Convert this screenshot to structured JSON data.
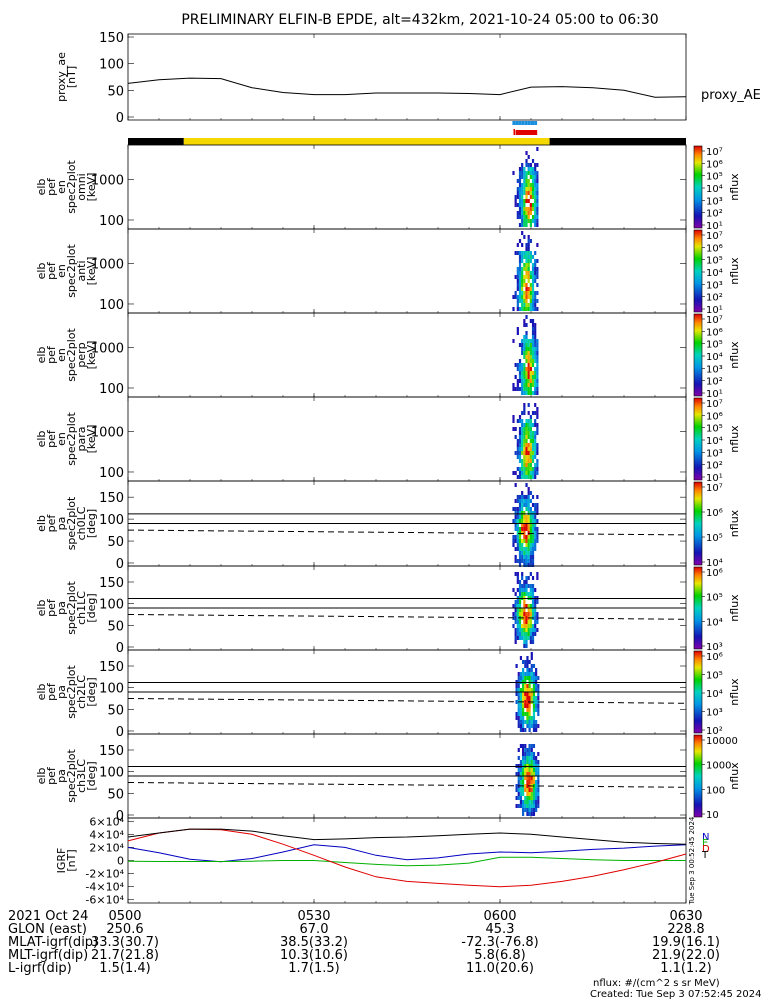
{
  "title": "PRELIMINARY ELFIN-B EPDE, alt=432km, 2021-10-24 05:00 to 06:30",
  "time_range": [
    "2021-10-24 05:00",
    "2021-10-24 06:30"
  ],
  "chart_data": [
    {
      "panel": "proxy_ae",
      "type": "line",
      "ylabel": "proxy_ae [nT]",
      "legend": "proxy_AE",
      "ylim": [
        0,
        150
      ],
      "yticks": [
        "0",
        "50",
        "100",
        "150"
      ],
      "x_min": [
        0,
        5,
        10,
        15,
        20,
        25,
        30,
        35,
        40,
        45,
        50,
        55,
        60,
        65,
        70,
        75,
        80,
        85,
        90
      ],
      "values": [
        63,
        70,
        73,
        72,
        55,
        46,
        42,
        42,
        45,
        45,
        45,
        44,
        42,
        56,
        57,
        55,
        50,
        37,
        38
      ]
    },
    {
      "panel": "status_bar",
      "type": "segments",
      "segments": [
        {
          "start_min": 0,
          "end_min": 9,
          "color": "#000000"
        },
        {
          "start_min": 9,
          "end_min": 68,
          "color": "#f5d800"
        },
        {
          "start_min": 68,
          "end_min": 90,
          "color": "#000000"
        }
      ],
      "science_marks": [
        {
          "start_min": 62,
          "end_min": 66,
          "color": "#1a8fe0"
        },
        {
          "start_min": 62.5,
          "end_min": 66,
          "color": "#e00000"
        }
      ]
    },
    {
      "panel": "elb_pef_en_spec2plot_omni",
      "type": "heatmap",
      "ylabel": "elb pef en spec2plot omni [keV]",
      "scale": "log",
      "ylim": [
        60,
        7000
      ],
      "yticks": [
        "100",
        "1000"
      ],
      "colorbar": {
        "label": "nflux",
        "ticks": [
          "10¹",
          "10²",
          "10³",
          "10⁴",
          "10⁵",
          "10⁶",
          "10⁷"
        ]
      },
      "activity_window_min": [
        62,
        66
      ],
      "peak_min": 64.5
    },
    {
      "panel": "elb_pef_en_spec2plot_anti",
      "type": "heatmap",
      "ylabel": "elb pef en spec2plot anti [keV]",
      "scale": "log",
      "ylim": [
        60,
        7000
      ],
      "yticks": [
        "100",
        "1000"
      ],
      "colorbar": {
        "label": "nflux",
        "ticks": [
          "10¹",
          "10²",
          "10³",
          "10⁴",
          "10⁵",
          "10⁶",
          "10⁷"
        ]
      },
      "activity_window_min": [
        62,
        66
      ],
      "peak_min": 64.2
    },
    {
      "panel": "elb_pef_en_spec2plot_perp",
      "type": "heatmap",
      "ylabel": "elb pef en spec2plot perp [keV]",
      "scale": "log",
      "ylim": [
        60,
        7000
      ],
      "yticks": [
        "100",
        "1000"
      ],
      "colorbar": {
        "label": "nflux",
        "ticks": [
          "10¹",
          "10²",
          "10³",
          "10⁴",
          "10⁵",
          "10⁶",
          "10⁷"
        ]
      },
      "activity_window_min": [
        62,
        66
      ],
      "peak_min": 64.5
    },
    {
      "panel": "elb_pef_en_spec2plot_para",
      "type": "heatmap",
      "ylabel": "elb pef en spec2plot para [keV]",
      "scale": "log",
      "ylim": [
        60,
        7000
      ],
      "yticks": [
        "100",
        "1000"
      ],
      "colorbar": {
        "label": "nflux",
        "ticks": [
          "10¹",
          "10²",
          "10³",
          "10⁴",
          "10⁵",
          "10⁶",
          "10⁷"
        ]
      },
      "activity_window_min": [
        62,
        66
      ],
      "peak_min": 64.3
    },
    {
      "panel": "elb_pef_pa_spec2plot_ch0LC",
      "type": "heatmap",
      "ylabel": "elb pef pa spec2plot ch0LC [deg]",
      "ylim": [
        0,
        180
      ],
      "yticks": [
        "0",
        "50",
        "100",
        "150"
      ],
      "lc_lines_deg": [
        90,
        112
      ],
      "dashed_deg": [
        75,
        64
      ],
      "colorbar": {
        "label": "nflux",
        "ticks": [
          "10⁴",
          "10⁵",
          "10⁶",
          "10⁷"
        ]
      },
      "activity_window_min": [
        62,
        66
      ],
      "peak_min": 64.0
    },
    {
      "panel": "elb_pef_pa_spec2plot_ch1LC",
      "type": "heatmap",
      "ylabel": "elb pef pa spec2plot ch1LC [deg]",
      "ylim": [
        0,
        180
      ],
      "yticks": [
        "0",
        "50",
        "100",
        "150"
      ],
      "lc_lines_deg": [
        90,
        112
      ],
      "dashed_deg": [
        75,
        64
      ],
      "colorbar": {
        "label": "nflux",
        "ticks": [
          "10³",
          "10⁴",
          "10⁵",
          "10⁶"
        ]
      },
      "activity_window_min": [
        62,
        66
      ],
      "peak_min": 64.0
    },
    {
      "panel": "elb_pef_pa_spec2plot_ch2LC",
      "type": "heatmap",
      "ylabel": "elb pef pa spec2plot ch2LC [deg]",
      "ylim": [
        0,
        180
      ],
      "yticks": [
        "0",
        "50",
        "100",
        "150"
      ],
      "lc_lines_deg": [
        90,
        112
      ],
      "dashed_deg": [
        75,
        64
      ],
      "colorbar": {
        "label": "nflux",
        "ticks": [
          "10²",
          "10³",
          "10⁴",
          "10⁵",
          "10⁶"
        ]
      },
      "activity_window_min": [
        62.5,
        66
      ],
      "peak_min": 64.3
    },
    {
      "panel": "elb_pef_pa_spec2plot_ch3LC",
      "type": "heatmap",
      "ylabel": "elb pef pa spec2plot ch3LC [deg]",
      "ylim": [
        0,
        180
      ],
      "yticks": [
        "0",
        "50",
        "100",
        "150"
      ],
      "lc_lines_deg": [
        90,
        112
      ],
      "dashed_deg": [
        75,
        64
      ],
      "colorbar": {
        "label": "nflux",
        "ticks": [
          "10",
          "100",
          "1000",
          "10000"
        ]
      },
      "activity_window_min": [
        62.5,
        66
      ],
      "peak_min": 64.5
    },
    {
      "panel": "IGRF",
      "type": "line",
      "ylabel": "IGRF [nT]",
      "ylim": [
        -65000,
        65000
      ],
      "yticks": [
        "-6×10⁴",
        "-4×10⁴",
        "-2×10⁴",
        "0",
        "2×10⁴",
        "4×10⁴",
        "6×10⁴"
      ],
      "x_min": [
        0,
        5,
        10,
        15,
        20,
        25,
        30,
        35,
        40,
        45,
        50,
        55,
        60,
        65,
        70,
        75,
        80,
        85,
        90
      ],
      "series": [
        {
          "name": "N",
          "color": "#0000c0",
          "values": [
            20000,
            12000,
            2000,
            -2000,
            3000,
            13000,
            24000,
            20000,
            8000,
            1000,
            4000,
            10000,
            13000,
            12000,
            14000,
            17000,
            19000,
            22000,
            24000
          ]
        },
        {
          "name": "E",
          "color": "#00b000",
          "values": [
            -1000,
            -1500,
            -1500,
            -1500,
            -1000,
            0,
            0,
            -3000,
            -6000,
            -8000,
            -7000,
            -4000,
            5000,
            5000,
            3000,
            1000,
            0,
            0,
            0
          ]
        },
        {
          "name": "D",
          "color": "#e00000",
          "values": [
            30000,
            42000,
            48000,
            47000,
            40000,
            25000,
            8000,
            -10000,
            -25000,
            -32000,
            -35000,
            -38000,
            -40000,
            -38000,
            -32000,
            -24000,
            -14000,
            -3000,
            10000
          ]
        },
        {
          "name": "T",
          "color": "#000000",
          "values": [
            36000,
            42000,
            48000,
            48000,
            45000,
            38000,
            32000,
            33000,
            35000,
            36000,
            38000,
            40000,
            42000,
            40000,
            36000,
            32000,
            28000,
            26000,
            25000
          ]
        }
      ],
      "side_note": "Tue Sep 3 00:52:45 2024"
    }
  ],
  "footer": {
    "date_label": "2021 Oct 24",
    "tick_labels": [
      "0500",
      "0530",
      "0600",
      "0630"
    ],
    "rows": [
      {
        "label": "GLON (east)",
        "values": [
          "250.6",
          "67.0",
          "45.3",
          "228.8"
        ]
      },
      {
        "label": "MLAT-igrf(dip)",
        "values": [
          "33.3(30.7)",
          "38.5(33.2)",
          "-72.3(-76.8)",
          "19.9(16.1)"
        ]
      },
      {
        "label": "MLT-igrf(dip)",
        "values": [
          "21.7(21.8)",
          "10.3(10.6)",
          "5.8(6.8)",
          "21.9(22.0)"
        ]
      },
      {
        "label": "L-igrf(dip)",
        "values": [
          "1.5(1.4)",
          "1.7(1.5)",
          "11.0(20.6)",
          "1.1(1.2)"
        ]
      }
    ],
    "units_note": "nflux: #/(cm^2 s sr MeV)",
    "created_note": "Created: Tue Sep  3 07:52:45 2024"
  }
}
